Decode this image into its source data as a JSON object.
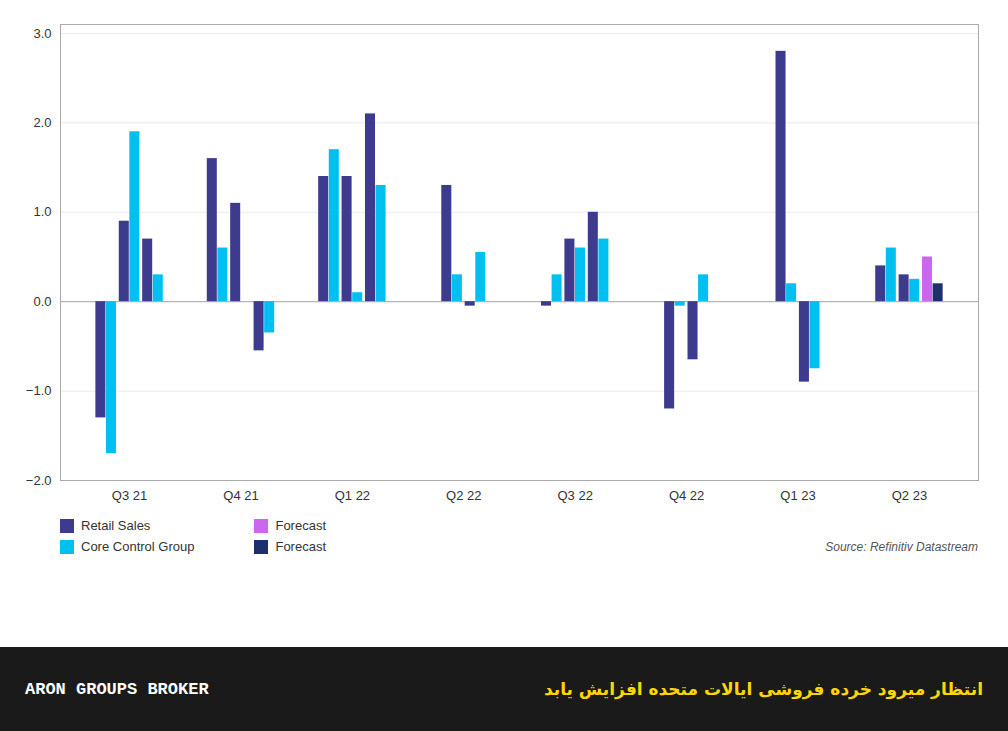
{
  "chart_data": {
    "type": "bar",
    "categories": [
      "Q3 21",
      "Q4 21",
      "Q1 22",
      "Q2 22",
      "Q3 22",
      "Q4 22",
      "Q1 23",
      "Q2 23"
    ],
    "series": [
      {
        "name": "Retail Sales",
        "color": "#3D3B8E",
        "values": [
          [
            -1.3,
            0.9,
            0.7
          ],
          [
            1.6,
            1.1,
            -0.55
          ],
          [
            1.4,
            1.4,
            2.1
          ],
          [
            1.3,
            -0.05
          ],
          [
            -0.05,
            0.7,
            1.0
          ],
          [
            -1.2,
            -0.65
          ],
          [
            2.8,
            -0.9
          ],
          [
            0.4,
            0.3,
            0.5
          ]
        ],
        "colors": [
          [
            "#3D3B8E",
            "#3D3B8E",
            "#3D3B8E"
          ],
          [
            "#3D3B8E",
            "#3D3B8E",
            "#3D3B8E"
          ],
          [
            "#3D3B8E",
            "#3D3B8E",
            "#3D3B8E"
          ],
          [
            "#3D3B8E",
            "#3D3B8E"
          ],
          [
            "#3D3B8E",
            "#3D3B8E",
            "#3D3B8E"
          ],
          [
            "#3D3B8E",
            "#3D3B8E"
          ],
          [
            "#3D3B8E",
            "#3D3B8E"
          ],
          [
            "#3D3B8E",
            "#3D3B8E",
            "#CC66EE"
          ]
        ]
      },
      {
        "name": "Core Control Group",
        "color": "#00C0F0",
        "values": [
          [
            -1.7,
            1.9,
            0.3
          ],
          [
            0.6,
            0.0,
            -0.35
          ],
          [
            1.7,
            0.1,
            1.3
          ],
          [
            0.3,
            0.55
          ],
          [
            0.3,
            0.6,
            0.7
          ],
          [
            -0.05,
            0.3
          ],
          [
            0.2,
            -0.75
          ],
          [
            0.6,
            0.25,
            0.2
          ]
        ],
        "colors": [
          [
            "#00C0F0",
            "#00C0F0",
            "#00C0F0"
          ],
          [
            "#00C0F0",
            "#00C0F0",
            "#00C0F0"
          ],
          [
            "#00C0F0",
            "#00C0F0",
            "#00C0F0"
          ],
          [
            "#00C0F0",
            "#00C0F0"
          ],
          [
            "#00C0F0",
            "#00C0F0",
            "#00C0F0"
          ],
          [
            "#00C0F0",
            "#00C0F0"
          ],
          [
            "#00C0F0",
            "#00C0F0"
          ],
          [
            "#00C0F0",
            "#00C0F0",
            "#1E2F6E"
          ]
        ]
      }
    ],
    "legend_entries": [
      {
        "label": "Retail Sales",
        "color": "#3D3B8E"
      },
      {
        "label": "Core Control Group",
        "color": "#00C0F0"
      },
      {
        "label": "Forecast",
        "color": "#CC66EE"
      },
      {
        "label": "Forecast",
        "color": "#1E2F6E"
      }
    ],
    "ylim": [
      -2.0,
      3.1
    ],
    "yticks": [
      -2,
      -1,
      0,
      1,
      2,
      3
    ],
    "grid": true,
    "source_text": "Source: Refinitiv Datastream",
    "footer_left": "ARON GROUPS BROKER",
    "footer_right": "انتظار میرود خرده فروشی ایالات متحده افزایش یابد",
    "footer_background": "#1a1a1a"
  }
}
